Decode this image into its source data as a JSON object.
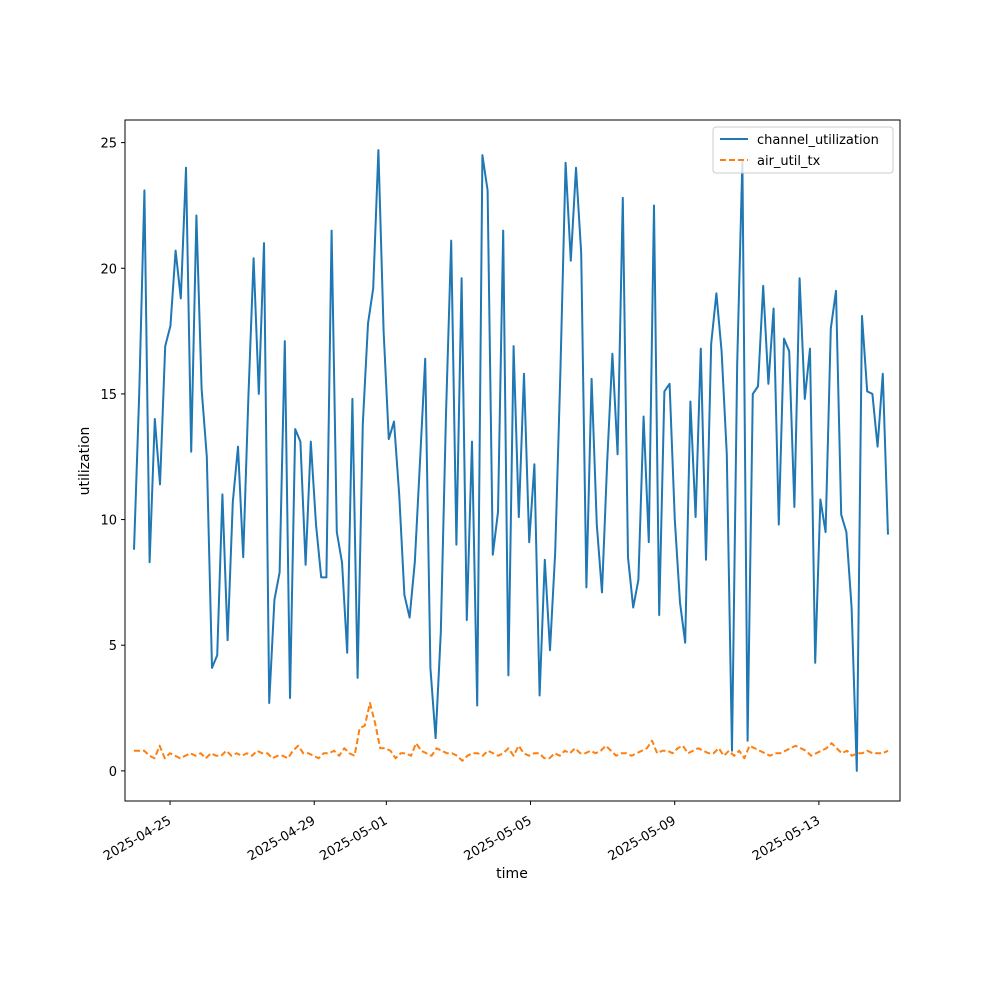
{
  "chart_data": {
    "type": "line",
    "title": "",
    "xlabel": "time",
    "ylabel": "utilization",
    "x_ticks": [
      "2025-04-25",
      "2025-04-29",
      "2025-05-01",
      "2025-05-05",
      "2025-05-09",
      "2025-05-13"
    ],
    "y_ticks": [
      "0",
      "5",
      "10",
      "15",
      "20",
      "25"
    ],
    "xlim": [
      "2025-04-23T18:00:00",
      "2025-05-15T06:00:00"
    ],
    "ylim": [
      -1.2,
      25.9
    ],
    "grid": false,
    "legend_position": "top-right",
    "x_start": "2025-04-24T00:00:00",
    "x_end": "2025-05-14T22:00:00",
    "series": [
      {
        "name": "channel_utilization",
        "color": "#1f77b4",
        "style": "solid",
        "values": [
          8.8,
          15.0,
          23.1,
          8.3,
          14.0,
          11.4,
          16.9,
          17.7,
          20.7,
          18.8,
          24.0,
          12.7,
          22.1,
          15.2,
          12.5,
          4.1,
          4.6,
          11.0,
          5.2,
          10.7,
          12.9,
          8.5,
          14.9,
          20.4,
          15.0,
          21.0,
          2.7,
          6.8,
          7.9,
          17.1,
          2.9,
          13.6,
          13.1,
          8.2,
          13.1,
          9.8,
          7.7,
          7.7,
          21.5,
          9.5,
          8.3,
          4.7,
          14.8,
          3.7,
          13.8,
          17.8,
          19.2,
          24.7,
          17.5,
          13.2,
          13.9,
          11.0,
          7.0,
          6.1,
          8.3,
          12.3,
          16.4,
          4.1,
          1.3,
          5.5,
          14.2,
          21.1,
          9.0,
          19.6,
          6.0,
          13.1,
          2.6,
          24.5,
          23.1,
          8.6,
          10.3,
          21.5,
          3.8,
          16.9,
          10.1,
          15.8,
          9.1,
          12.2,
          3.0,
          8.4,
          4.8,
          8.7,
          15.9,
          24.2,
          20.3,
          24.0,
          20.6,
          7.3,
          15.6,
          9.8,
          7.1,
          12.3,
          16.6,
          12.6,
          22.8,
          8.5,
          6.5,
          7.6,
          14.1,
          9.1,
          22.5,
          6.2,
          15.1,
          15.4,
          10.0,
          6.7,
          5.1,
          14.7,
          10.1,
          16.8,
          8.4,
          17.0,
          19.0,
          16.7,
          12.6,
          0.8,
          16.2,
          24.3,
          1.2,
          15.0,
          15.3,
          19.3,
          15.4,
          18.4,
          9.8,
          17.2,
          16.7,
          10.5,
          19.6,
          14.8,
          16.8,
          4.3,
          10.8,
          9.5,
          17.6,
          19.1,
          10.2,
          9.5,
          6.5,
          0.0,
          18.1,
          15.1,
          15.0,
          12.9,
          15.8,
          9.4
        ]
      },
      {
        "name": "air_util_tx",
        "color": "#ff7f0e",
        "style": "dashed",
        "values": [
          0.8,
          0.8,
          0.8,
          0.6,
          0.5,
          1.0,
          0.5,
          0.7,
          0.6,
          0.5,
          0.6,
          0.7,
          0.6,
          0.7,
          0.5,
          0.7,
          0.6,
          0.6,
          0.8,
          0.6,
          0.7,
          0.6,
          0.7,
          0.6,
          0.8,
          0.7,
          0.7,
          0.5,
          0.6,
          0.6,
          0.5,
          0.8,
          1.0,
          0.7,
          0.7,
          0.6,
          0.5,
          0.7,
          0.7,
          0.8,
          0.6,
          0.9,
          0.7,
          0.6,
          1.7,
          1.8,
          2.7,
          1.9,
          0.9,
          0.9,
          0.8,
          0.5,
          0.7,
          0.7,
          0.6,
          1.1,
          0.8,
          0.7,
          0.6,
          0.9,
          0.8,
          0.7,
          0.7,
          0.6,
          0.4,
          0.6,
          0.7,
          0.7,
          0.6,
          0.8,
          0.7,
          0.6,
          0.7,
          0.9,
          0.6,
          1.0,
          0.7,
          0.6,
          0.7,
          0.7,
          0.5,
          0.5,
          0.7,
          0.6,
          0.8,
          0.7,
          0.9,
          0.7,
          0.7,
          0.8,
          0.7,
          0.8,
          1.0,
          0.8,
          0.6,
          0.7,
          0.7,
          0.6,
          0.7,
          0.8,
          0.9,
          1.2,
          0.7,
          0.8,
          0.8,
          0.7,
          0.9,
          1.0,
          0.7,
          0.8,
          0.9,
          0.8,
          0.7,
          0.7,
          0.9,
          0.6,
          0.8,
          0.6,
          0.8,
          0.5,
          1.0,
          0.9,
          0.8,
          0.7,
          0.6,
          0.7,
          0.7,
          0.8,
          0.9,
          1.0,
          0.9,
          0.8,
          0.6,
          0.7,
          0.8,
          0.9,
          1.1,
          0.9,
          0.7,
          0.8,
          0.6,
          0.7,
          0.7,
          0.8,
          0.7,
          0.7,
          0.7,
          0.8
        ]
      }
    ]
  }
}
